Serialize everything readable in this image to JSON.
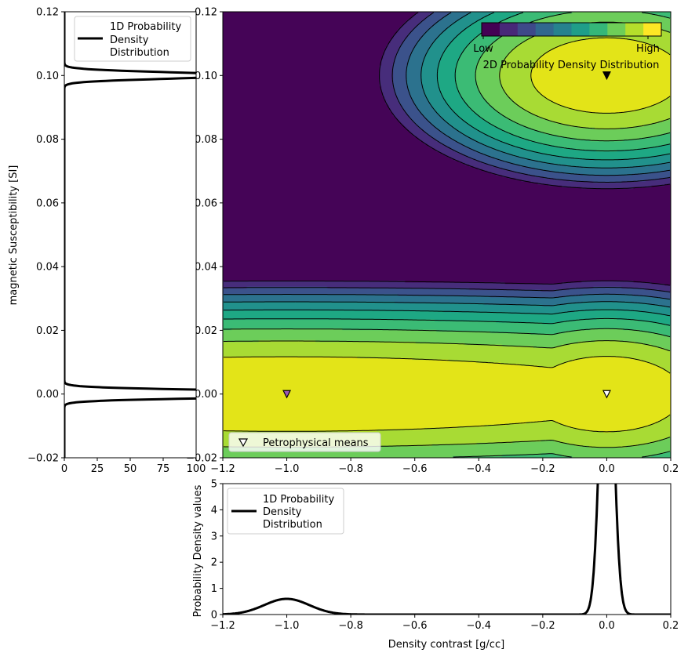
{
  "chart_data": [
    {
      "id": "left_marginal",
      "type": "line",
      "orientation": "vertical",
      "ylabel": "magnetic Susceptibility [SI]",
      "xlabel": "",
      "xlim": [
        0,
        100
      ],
      "ylim": [
        -0.02,
        0.12
      ],
      "x_ticks": [
        "0",
        "25",
        "50",
        "75",
        "100"
      ],
      "x_tick_values": [
        0,
        25,
        50,
        75,
        100
      ],
      "y_ticks": [
        "−0.02",
        "0.00",
        "0.02",
        "0.04",
        "0.06",
        "0.08",
        "0.10",
        "0.12"
      ],
      "y_tick_values": [
        -0.02,
        0,
        0.02,
        0.04,
        0.06,
        0.08,
        0.1,
        0.12
      ],
      "legend": {
        "label": "1D Probability Density Distribution",
        "lines": [
          "1D Probability",
          "Density",
          "Distribution"
        ],
        "location": "upper-right"
      },
      "series": [
        {
          "name": "1D Probability Density Distribution",
          "peaks": [
            {
              "center": 0.0,
              "sigma": 0.001,
              "weight": 0.667
            },
            {
              "center": 0.1,
              "sigma": 0.001,
              "weight": 0.333
            }
          ]
        }
      ]
    },
    {
      "id": "main_contour",
      "type": "heatmap",
      "xlim": [
        -1.2,
        0.2
      ],
      "ylim": [
        -0.02,
        0.12
      ],
      "x_ticks": [
        "−1.2",
        "−1.0",
        "−0.8",
        "−0.6",
        "−0.4",
        "−0.2",
        "0.0",
        "0.2"
      ],
      "x_tick_values": [
        -1.2,
        -1.0,
        -0.8,
        -0.6,
        -0.4,
        -0.2,
        0.0,
        0.2
      ],
      "y_ticks": [
        "−0.02",
        "0.00",
        "0.02",
        "0.04",
        "0.06",
        "0.08",
        "0.10",
        "0.12"
      ],
      "y_tick_values": [
        -0.02,
        0,
        0.02,
        0.04,
        0.06,
        0.08,
        0.1,
        0.12
      ],
      "colorbar": {
        "title": "2D Probability Density Distribution",
        "low_label": "Low",
        "high_label": "High",
        "levels": 11,
        "location": "top-right"
      },
      "colors": [
        "#440154",
        "#482878",
        "#3e4989",
        "#31688e",
        "#26828e",
        "#1f9e89",
        "#35b779",
        "#6ece58",
        "#b5de2b",
        "#fde725"
      ],
      "contour_colors": [
        "#450457",
        "#472d7b",
        "#3b528b",
        "#2c728e",
        "#21918c",
        "#1ea884",
        "#3bbb75",
        "#6ccd5a",
        "#a8db34",
        "#e3e418"
      ],
      "legend": {
        "label": "Petrophysical means",
        "location": "lower-left"
      },
      "components": [
        {
          "mean": [
            -1.0,
            0.0
          ],
          "std": [
            0.1,
            0.001
          ],
          "weight": 1,
          "marker_color": "#9b59b6"
        },
        {
          "mean": [
            0.0,
            0.0
          ],
          "std": [
            0.02,
            0.001
          ],
          "weight": 1,
          "marker_color": "#ffffff"
        },
        {
          "mean": [
            0.0,
            0.1
          ],
          "std": [
            0.02,
            0.001
          ],
          "weight": 1,
          "marker_color": "#000000"
        }
      ]
    },
    {
      "id": "bottom_marginal",
      "type": "line",
      "xlabel": "Density contrast [g/cc]",
      "ylabel": "Probability Density values",
      "xlim": [
        -1.2,
        0.2
      ],
      "ylim": [
        0,
        5
      ],
      "x_ticks": [
        "−1.2",
        "−1.0",
        "−0.8",
        "−0.6",
        "−0.4",
        "−0.2",
        "0.0",
        "0.2"
      ],
      "x_tick_values": [
        -1.2,
        -1.0,
        -0.8,
        -0.6,
        -0.4,
        -0.2,
        0.0,
        0.2
      ],
      "y_ticks": [
        "0",
        "1",
        "2",
        "3",
        "4",
        "5"
      ],
      "y_tick_values": [
        0,
        1,
        2,
        3,
        4,
        5
      ],
      "legend": {
        "label": "1D Probability Density Distribution",
        "lines": [
          "1D Probability",
          "Density",
          "Distribution"
        ],
        "location": "upper-left"
      },
      "series": [
        {
          "name": "1D Probability Density Distribution",
          "peaks": [
            {
              "center": -1.0,
              "sigma": 0.07,
              "height": 0.6
            },
            {
              "center": 0.0,
              "sigma": 0.02,
              "height": 13.3
            }
          ]
        }
      ]
    }
  ]
}
